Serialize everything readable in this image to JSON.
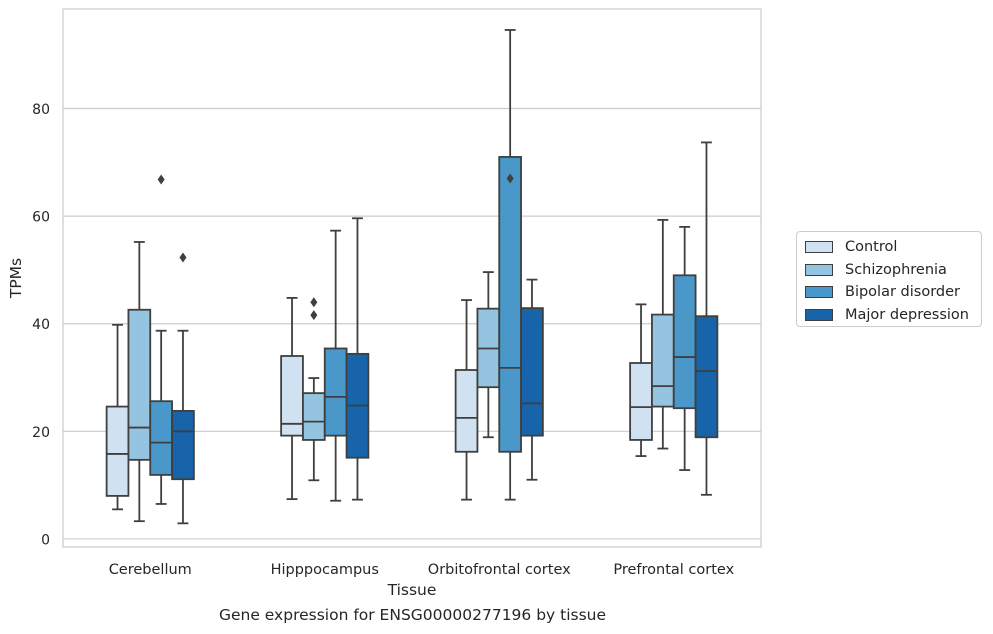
{
  "caption": "Gene expression for ENSG00000277196 by tissue",
  "chart_data": {
    "type": "box",
    "title": "",
    "xlabel": "Tissue",
    "ylabel": "TPMs",
    "ylim": [
      -1.5,
      98.5
    ],
    "yticks": [
      0,
      20,
      40,
      60,
      80
    ],
    "grid": "horizontal",
    "legend_position": "outside-right",
    "categories": [
      "Cerebellum",
      "Hipppocampus",
      "Orbitofrontal cortex",
      "Prefrontal cortex"
    ],
    "series": [
      {
        "name": "Control",
        "color": "#d0e1f2",
        "boxes": [
          {
            "whisker_low": 5.5,
            "q1": 8.0,
            "median": 15.8,
            "q3": 24.6,
            "whisker_high": 39.8,
            "outliers": []
          },
          {
            "whisker_low": 7.4,
            "q1": 19.2,
            "median": 21.4,
            "q3": 34.0,
            "whisker_high": 44.8,
            "outliers": []
          },
          {
            "whisker_low": 7.3,
            "q1": 16.2,
            "median": 22.5,
            "q3": 31.4,
            "whisker_high": 44.4,
            "outliers": []
          },
          {
            "whisker_low": 15.4,
            "q1": 18.4,
            "median": 24.5,
            "q3": 32.7,
            "whisker_high": 43.6,
            "outliers": []
          }
        ]
      },
      {
        "name": "Schizophrenia",
        "color": "#94c4df",
        "boxes": [
          {
            "whisker_low": 3.3,
            "q1": 14.7,
            "median": 20.7,
            "q3": 42.6,
            "whisker_high": 55.2,
            "outliers": []
          },
          {
            "whisker_low": 10.9,
            "q1": 18.4,
            "median": 21.8,
            "q3": 27.1,
            "whisker_high": 29.9,
            "outliers": [
              41.6,
              44.0
            ]
          },
          {
            "whisker_low": 18.9,
            "q1": 28.2,
            "median": 35.4,
            "q3": 42.8,
            "whisker_high": 49.6,
            "outliers": []
          },
          {
            "whisker_low": 16.8,
            "q1": 24.6,
            "median": 28.4,
            "q3": 41.7,
            "whisker_high": 59.3,
            "outliers": []
          }
        ]
      },
      {
        "name": "Bipolar disorder",
        "color": "#4a98c9",
        "boxes": [
          {
            "whisker_low": 6.5,
            "q1": 11.9,
            "median": 17.9,
            "q3": 25.6,
            "whisker_high": 38.7,
            "outliers": [
              66.8
            ]
          },
          {
            "whisker_low": 7.1,
            "q1": 19.2,
            "median": 26.4,
            "q3": 35.4,
            "whisker_high": 57.3,
            "outliers": []
          },
          {
            "whisker_low": 7.3,
            "q1": 16.2,
            "median": 31.8,
            "q3": 71.0,
            "whisker_high": 94.6,
            "outliers": [
              67.0
            ]
          },
          {
            "whisker_low": 12.8,
            "q1": 24.3,
            "median": 33.8,
            "q3": 49.0,
            "whisker_high": 58.0,
            "outliers": []
          }
        ]
      },
      {
        "name": "Major depression",
        "color": "#1764ab",
        "boxes": [
          {
            "whisker_low": 2.9,
            "q1": 11.1,
            "median": 20.0,
            "q3": 23.8,
            "whisker_high": 38.7,
            "outliers": [
              52.3
            ]
          },
          {
            "whisker_low": 7.3,
            "q1": 15.1,
            "median": 24.8,
            "q3": 34.4,
            "whisker_high": 59.6,
            "outliers": []
          },
          {
            "whisker_low": 11.0,
            "q1": 19.2,
            "median": 25.2,
            "q3": 42.9,
            "whisker_high": 48.2,
            "outliers": []
          },
          {
            "whisker_low": 8.2,
            "q1": 18.9,
            "median": 31.2,
            "q3": 41.4,
            "whisker_high": 73.7,
            "outliers": []
          }
        ]
      }
    ]
  }
}
